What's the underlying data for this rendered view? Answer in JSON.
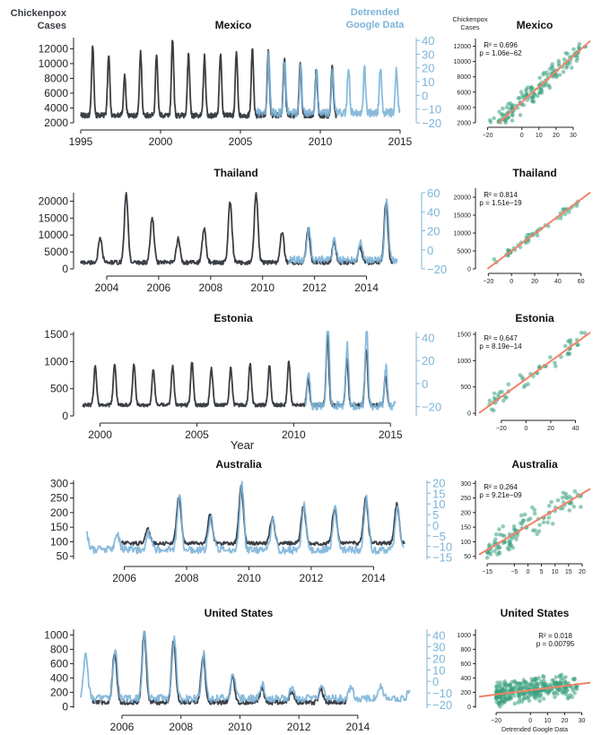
{
  "header": {
    "left_label": "Chickenpox\nCases",
    "right_label": "Detrended\nGoogle Data",
    "scatter_y_label": "Chickenpox\nCases",
    "scatter_x_label": "Detrended Google Data",
    "year_label": "Year"
  },
  "colors": {
    "cases": "#3a3e45",
    "google": "#7db4d8",
    "overlap": "#2f6a96",
    "points": "#3aa07e",
    "fit": "#f0846a"
  },
  "chart_data": [
    {
      "type": "line",
      "title": "Mexico",
      "x_range": [
        1995,
        2015
      ],
      "x_ticks": [
        "1995",
        "2000",
        "2005",
        "2010",
        "2015"
      ],
      "y_left_ticks": [
        "2000",
        "4000",
        "6000",
        "8000",
        "10000",
        "12000"
      ],
      "y_left_range": [
        2000,
        13500
      ],
      "y_right_ticks": [
        "−20",
        "−10",
        "0",
        "10",
        "20",
        "30",
        "40"
      ],
      "y_right_range": [
        -20,
        42
      ],
      "cases": {
        "start": 1995.0,
        "end": 2011.0,
        "amplitude": 9000,
        "base": 3000,
        "peak_multipliers": [
          1.05,
          0.9,
          0.6,
          0.95,
          0.92,
          1.15,
          0.92,
          0.88,
          0.93,
          0.95,
          1.0,
          0.98,
          0.85,
          0.8,
          0.7,
          0.75
        ]
      },
      "google": {
        "start": 2006.0,
        "end": 2015.0
      },
      "scatter": {
        "r2_text": "R² = 0.696",
        "p_text": "p = 1.06e−62",
        "x_ticks": [
          "−20",
          "0",
          "10",
          "20",
          "30"
        ],
        "x_range": [
          -25,
          40
        ],
        "y_ticks": [
          "2000",
          "4000",
          "6000",
          "8000",
          "10000",
          "12000"
        ],
        "y_range": [
          2000,
          13000
        ],
        "fit": {
          "slope": 200,
          "intercept": 4700
        },
        "n": 200,
        "x_spread": [
          -22,
          38
        ],
        "noise": 1600
      }
    },
    {
      "type": "line",
      "title": "Thailand",
      "x_range": [
        2003,
        2015.5
      ],
      "x_ticks": [
        "2004",
        "2006",
        "2008",
        "2010",
        "2012",
        "2014"
      ],
      "y_left_ticks": [
        "0",
        "5000",
        "10000",
        "15000",
        "20000"
      ],
      "y_left_range": [
        0,
        22500
      ],
      "y_right_ticks": [
        "−20",
        "0",
        "20",
        "40",
        "60"
      ],
      "y_right_range": [
        -20,
        60
      ],
      "cases": {
        "start": 2003.0,
        "end": 2015.0,
        "amplitude": 15500,
        "base": 1900,
        "peak_multipliers": [
          0.45,
          1.3,
          0.85,
          0.45,
          0.65,
          1.15,
          1.32,
          0.58,
          0.62,
          0.38,
          0.3,
          1.15
        ]
      },
      "google": {
        "start": 2011.0,
        "end": 2015.2
      },
      "scatter": {
        "r2_text": "R² = 0.814",
        "p_text": "p = 1.51e−19",
        "x_ticks": [
          "−20",
          "0",
          "20",
          "40",
          "60"
        ],
        "x_range": [
          -28,
          68
        ],
        "y_ticks": [
          "0",
          "5000",
          "10000",
          "15000",
          "20000"
        ],
        "y_range": [
          0,
          22500
        ],
        "fit": {
          "slope": 240,
          "intercept": 5000
        },
        "n": 50,
        "x_spread": [
          -15,
          58
        ],
        "noise": 1500
      }
    },
    {
      "type": "line",
      "title": "Estonia",
      "x_range": [
        1999,
        2015.5
      ],
      "x_ticks": [
        "2000",
        "2005",
        "2010",
        "2015"
      ],
      "y_left_ticks": [
        "0",
        "500",
        "1000",
        "1500"
      ],
      "y_left_range": [
        0,
        1550
      ],
      "y_right_ticks": [
        "−20",
        "0",
        "20",
        "40"
      ],
      "y_right_range": [
        -28,
        45
      ],
      "cases": {
        "start": 1999.1,
        "end": 2015.0,
        "amplitude": 800,
        "base": 200,
        "peak_multipliers": [
          0.9,
          0.95,
          0.95,
          0.8,
          0.9,
          1.0,
          0.85,
          0.85,
          0.95,
          0.9,
          0.98,
          0.6,
          1.6,
          1.05,
          1.3,
          0.65
        ]
      },
      "google": {
        "start": 2010.6,
        "end": 2015.3
      },
      "scatter": {
        "r2_text": "R² = 0.647",
        "p_text": "p = 8.19e−14",
        "x_ticks": [
          "−20",
          "0",
          "20",
          "40"
        ],
        "x_range": [
          -38,
          52
        ],
        "y_ticks": [
          "0",
          "500",
          "1000",
          "1500"
        ],
        "y_range": [
          -50,
          1550
        ],
        "fit": {
          "slope": 17,
          "intercept": 650
        },
        "n": 55,
        "x_spread": [
          -30,
          48
        ],
        "noise": 220
      }
    },
    {
      "type": "line",
      "title": "Australia",
      "x_range": [
        2004.6,
        2015.2
      ],
      "x_ticks": [
        "2006",
        "2008",
        "2010",
        "2012",
        "2014"
      ],
      "y_left_ticks": [
        "50",
        "100",
        "150",
        "200",
        "250",
        "300"
      ],
      "y_left_range": [
        40,
        310
      ],
      "y_right_ticks": [
        "−15",
        "−10",
        "−5",
        "0",
        "5",
        "10",
        "15",
        "20"
      ],
      "y_right_range": [
        -16,
        21
      ],
      "cases": {
        "start": 2005.9,
        "end": 2015.0,
        "amplitude": 160,
        "base": 95,
        "peak_multipliers": [
          0.3,
          1.0,
          0.6,
          1.2,
          0.55,
          0.8,
          0.75,
          0.95,
          0.85,
          0.65
        ]
      },
      "google": {
        "start": 2004.8,
        "end": 2015.0
      },
      "scatter": {
        "r2_text": "R² = 0.264",
        "p_text": "p = 9.21e−09",
        "x_ticks": [
          "−15",
          "−5",
          "0",
          "5",
          "10",
          "15",
          "20"
        ],
        "x_range": [
          -18,
          23
        ],
        "y_ticks": [
          "50",
          "100",
          "150",
          "200",
          "250",
          "300"
        ],
        "y_range": [
          40,
          310
        ],
        "fit": {
          "slope": 5.5,
          "intercept": 155
        },
        "n": 110,
        "x_spread": [
          -15,
          20
        ],
        "noise": 55
      }
    },
    {
      "type": "line",
      "title": "United States",
      "x_range": [
        2004.6,
        2015.8
      ],
      "x_ticks": [
        "2006",
        "2008",
        "2010",
        "2012",
        "2014"
      ],
      "y_left_ticks": [
        "0",
        "200",
        "400",
        "600",
        "800",
        "1000"
      ],
      "y_left_range": [
        -20,
        1080
      ],
      "y_right_ticks": [
        "−20",
        "−10",
        "0",
        "10",
        "20",
        "30",
        "40"
      ],
      "y_right_range": [
        -23,
        45
      ],
      "cases": {
        "start": 2005.0,
        "end": 2013.6,
        "amplitude": 800,
        "base": 60,
        "peak_multipliers": [
          0.85,
          1.2,
          1.1,
          0.8,
          0.45,
          0.25,
          0.2,
          0.22,
          0.2
        ]
      },
      "google": {
        "start": 2004.6,
        "end": 2015.8
      },
      "scatter": {
        "r2_text": "R² = 0.018",
        "p_text": "p = 0.00795",
        "x_ticks": [
          "−20",
          "0",
          "10",
          "20",
          "30"
        ],
        "x_range": [
          -30,
          35
        ],
        "y_ticks": [
          "0",
          "200",
          "400",
          "600",
          "800",
          "1000"
        ],
        "y_range": [
          -20,
          1080
        ],
        "fit": {
          "slope": 3,
          "intercept": 230
        },
        "n": 320,
        "x_spread": [
          -20,
          28
        ],
        "noise": 190
      }
    }
  ]
}
